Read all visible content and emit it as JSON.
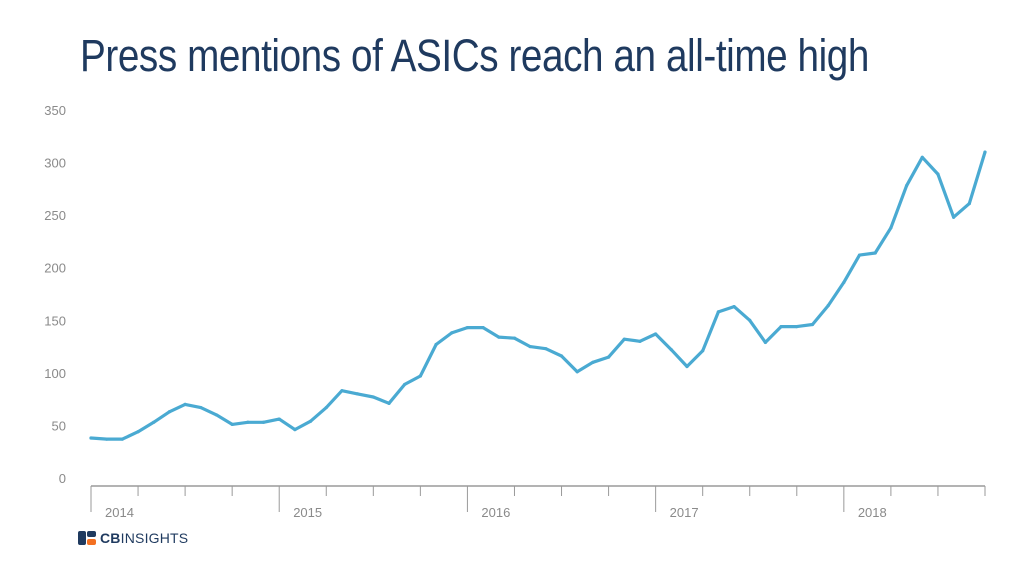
{
  "title": "Press mentions of ASICs reach an all-time high",
  "brand": {
    "bold": "CB",
    "light": "INSIGHTS"
  },
  "colors": {
    "line": "#4aaad2",
    "title": "#1f3a5f",
    "axis": "#9a9a9a",
    "tick_text": "#8a8a8a"
  },
  "chart_data": {
    "type": "line",
    "title": "Press mentions of ASICs reach an all-time high",
    "xlabel": "",
    "ylabel": "",
    "ylim": [
      0,
      350
    ],
    "yticks": [
      0,
      50,
      100,
      150,
      200,
      250,
      300,
      350
    ],
    "grid": false,
    "x_labels": [
      "2014",
      "2015",
      "2016",
      "2017",
      "2018"
    ],
    "x": [
      "2014-01",
      "2014-02",
      "2014-03",
      "2014-04",
      "2014-05",
      "2014-06",
      "2014-07",
      "2014-08",
      "2014-09",
      "2014-10",
      "2014-11",
      "2014-12",
      "2015-01",
      "2015-02",
      "2015-03",
      "2015-04",
      "2015-05",
      "2015-06",
      "2015-07",
      "2015-08",
      "2015-09",
      "2015-10",
      "2015-11",
      "2015-12",
      "2016-01",
      "2016-02",
      "2016-03",
      "2016-04",
      "2016-05",
      "2016-06",
      "2016-07",
      "2016-08",
      "2016-09",
      "2016-10",
      "2016-11",
      "2016-12",
      "2017-01",
      "2017-02",
      "2017-03",
      "2017-04",
      "2017-05",
      "2017-06",
      "2017-07",
      "2017-08",
      "2017-09",
      "2017-10",
      "2017-11",
      "2017-12",
      "2018-01",
      "2018-02",
      "2018-03",
      "2018-04",
      "2018-05",
      "2018-06",
      "2018-07",
      "2018-08",
      "2018-09",
      "2018-10"
    ],
    "series": [
      {
        "values": [
          38,
          37,
          37,
          44,
          53,
          63,
          70,
          67,
          60,
          51,
          53,
          53,
          56,
          46,
          54,
          67,
          83,
          80,
          77,
          71,
          89,
          97,
          127,
          138,
          143,
          143,
          134,
          133,
          125,
          123,
          116,
          101,
          110,
          115,
          132,
          130,
          137,
          122,
          106,
          121,
          158,
          163,
          150,
          129,
          144,
          144,
          146,
          164,
          186,
          212,
          214,
          238,
          278,
          305,
          289,
          248,
          261,
          310
        ]
      }
    ]
  }
}
